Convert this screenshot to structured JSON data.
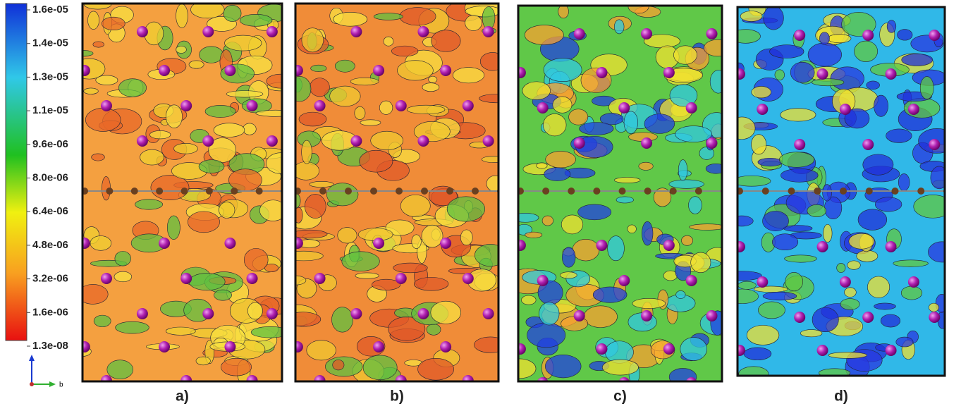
{
  "colorbar": {
    "ticks": [
      "1.6e-05",
      "1.4e-05",
      "1.3e-05",
      "1.1e-05",
      "9.6e-06",
      "8.0e-06",
      "6.4e-06",
      "4.8e-06",
      "3.2e-06",
      "1.6e-06",
      "1.3e-08"
    ]
  },
  "axes": {
    "horizontal": "b"
  },
  "panels": [
    {
      "label": "a)"
    },
    {
      "label": "b)"
    },
    {
      "label": "c)"
    },
    {
      "label": "d)"
    }
  ]
}
